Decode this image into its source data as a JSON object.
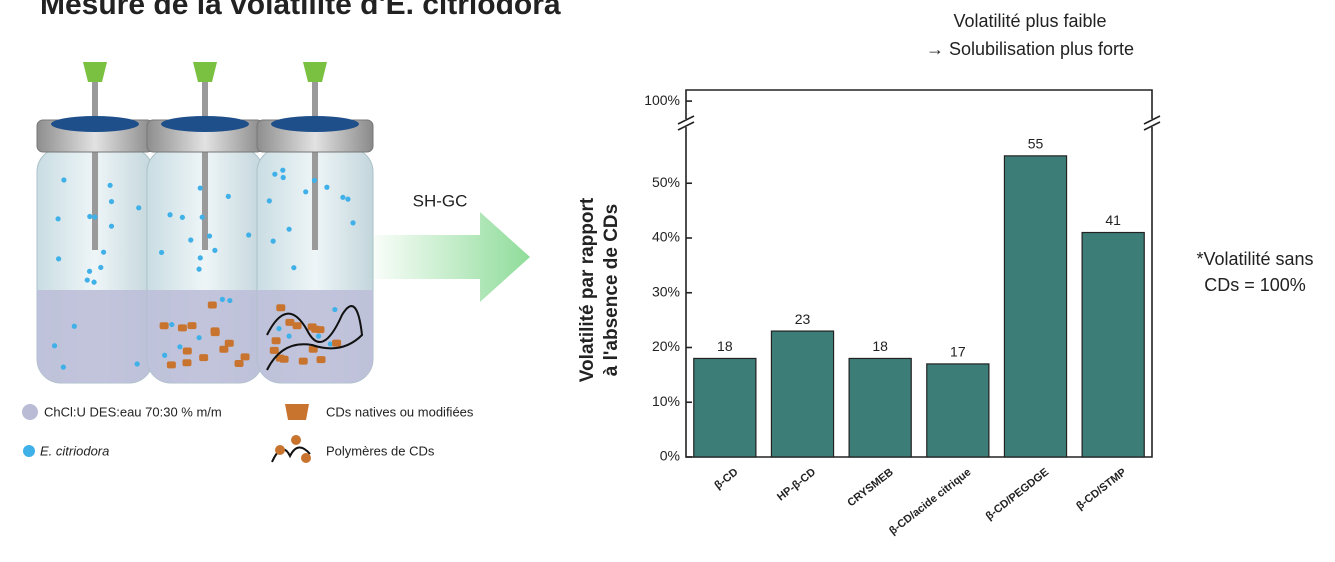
{
  "title": "Mesure de la volatilité d'E. citriodora",
  "illustration": {
    "label": "SH-GC",
    "legend": [
      "ChCl:U DES:eau 70:30 % m/m",
      "E. citriodora",
      "CDs natives ou modifiées",
      "Polymères de CDs"
    ]
  },
  "note": [
    "*Volatilité sans",
    "CDs = 100%"
  ],
  "chart_data": {
    "type": "bar",
    "annotation": [
      "Volatilité plus faible",
      "→ Solubilisation plus forte"
    ],
    "ylabel": [
      "Volatilité par rapport",
      "à l'absence de CDs"
    ],
    "categories": [
      "β-CD",
      "HP-β-CD",
      "CRYSMEB",
      "β-CD/acide citrique",
      "β-CD/PEGDGE",
      "β-CD/STMP"
    ],
    "values": [
      18,
      23,
      18,
      17,
      55,
      41
    ],
    "color": "#3d7d78",
    "ylim": [
      0,
      100
    ],
    "axis_break": [
      61,
      96
    ],
    "yticks": [
      {
        "value": 0,
        "label": "0%"
      },
      {
        "value": 10,
        "label": "10%"
      },
      {
        "value": 20,
        "label": "20%"
      },
      {
        "value": 30,
        "label": "30%"
      },
      {
        "value": 40,
        "label": "40%"
      },
      {
        "value": 50,
        "label": "50%"
      },
      {
        "value": 100,
        "label": "100%"
      }
    ],
    "grid": false
  }
}
